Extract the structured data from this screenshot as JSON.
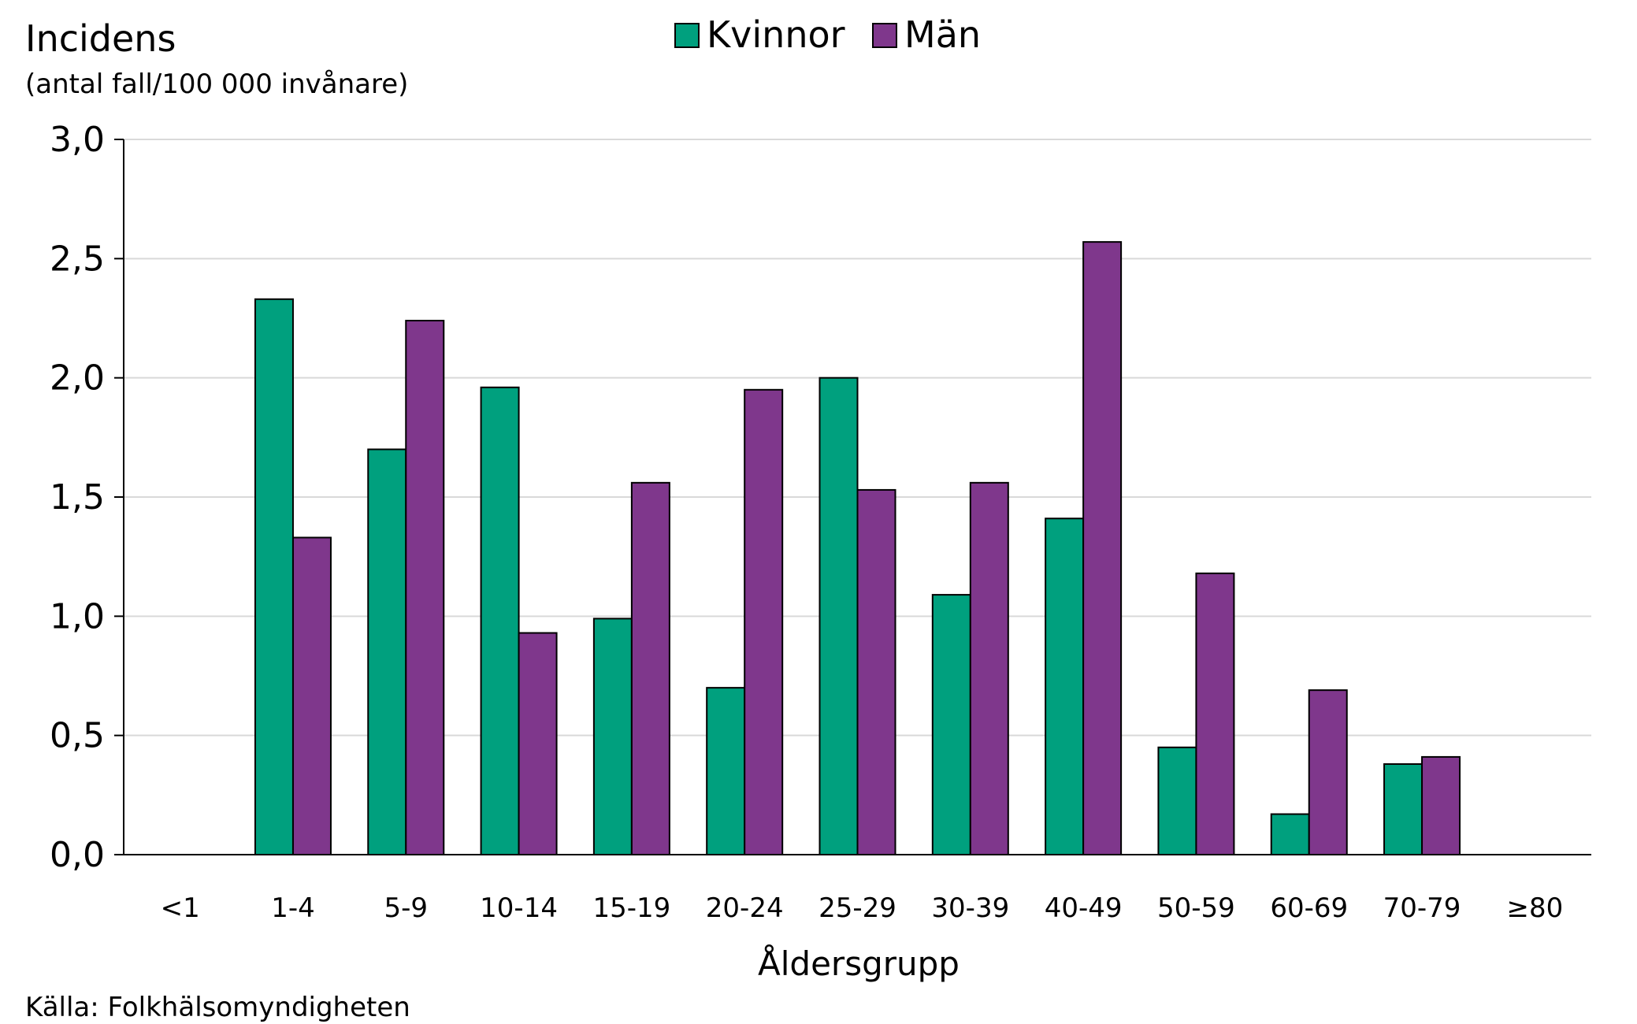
{
  "chart_data": {
    "type": "bar",
    "ylabel_line1": "Incidens",
    "ylabel_line2": "(antal fall/100 000 invånare)",
    "xlabel": "Åldersgrupp",
    "source": "Källa: Folkhälsomyndigheten",
    "ylim": [
      0,
      3.0
    ],
    "yticks": [
      "0,0",
      "0,5",
      "1,0",
      "1,5",
      "2,0",
      "2,5",
      "3,0"
    ],
    "ytick_values": [
      0,
      0.5,
      1.0,
      1.5,
      2.0,
      2.5,
      3.0
    ],
    "grid": true,
    "legend_position": "top-center",
    "categories": [
      "<1",
      "1-4",
      "5-9",
      "10-14",
      "15-19",
      "20-24",
      "25-29",
      "30-39",
      "40-49",
      "50-59",
      "60-69",
      "70-79",
      "≥80"
    ],
    "series": [
      {
        "name": "Kvinnor",
        "color": "#00a07e",
        "values": [
          0,
          2.33,
          1.7,
          1.96,
          0.99,
          0.7,
          2.0,
          1.09,
          1.41,
          0.45,
          0.17,
          0.38,
          0
        ]
      },
      {
        "name": "Män",
        "color": "#7f378c",
        "values": [
          0,
          1.33,
          2.24,
          0.93,
          1.56,
          1.95,
          1.53,
          1.56,
          2.57,
          1.18,
          0.69,
          0.41,
          0
        ]
      }
    ]
  }
}
